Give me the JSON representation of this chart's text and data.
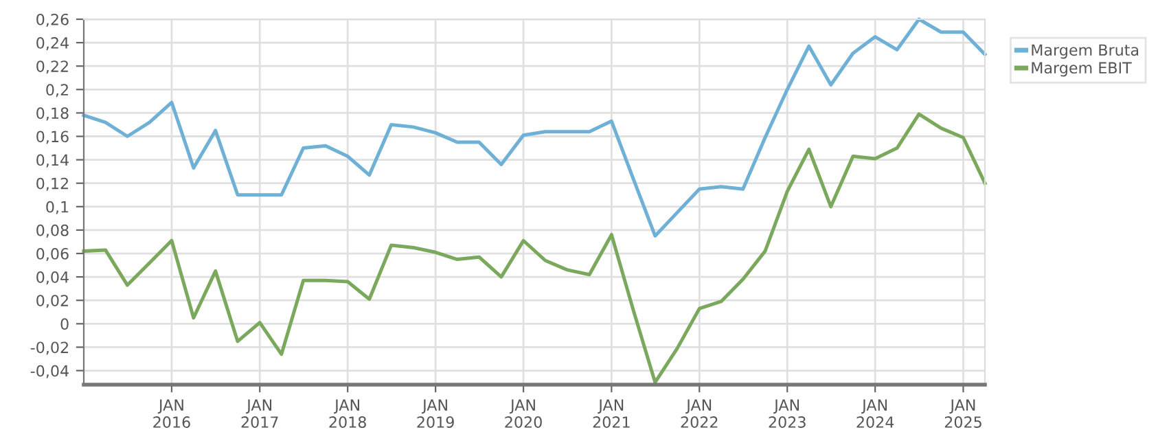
{
  "chart_data": {
    "type": "line",
    "x": [
      "2015-01",
      "2015-04",
      "2015-07",
      "2015-10",
      "2016-01",
      "2016-04",
      "2016-07",
      "2016-10",
      "2017-01",
      "2017-04",
      "2017-07",
      "2017-10",
      "2018-01",
      "2018-04",
      "2018-07",
      "2018-10",
      "2019-01",
      "2019-04",
      "2019-07",
      "2019-10",
      "2020-01",
      "2020-04",
      "2020-07",
      "2020-10",
      "2021-01",
      "2021-04",
      "2021-07",
      "2021-10",
      "2022-01",
      "2022-04",
      "2022-07",
      "2022-10",
      "2023-01",
      "2023-04",
      "2023-07",
      "2023-10",
      "2024-01",
      "2024-04",
      "2024-07",
      "2024-10",
      "2025-01",
      "2025-04"
    ],
    "series": [
      {
        "name": "Margem Bruta",
        "color": "#6fb0d6",
        "values": [
          0.178,
          0.172,
          0.16,
          0.172,
          0.189,
          0.133,
          0.165,
          0.11,
          0.11,
          0.11,
          0.15,
          0.152,
          0.143,
          0.127,
          0.17,
          0.168,
          0.163,
          0.155,
          0.155,
          0.136,
          0.161,
          0.164,
          0.164,
          0.164,
          0.173,
          0.124,
          0.075,
          0.095,
          0.115,
          0.117,
          0.115,
          0.159,
          0.2,
          0.237,
          0.204,
          0.231,
          0.245,
          0.234,
          0.26,
          0.249,
          0.249,
          0.23
        ]
      },
      {
        "name": "Margem EBIT",
        "color": "#7aa85c",
        "values": [
          0.062,
          0.063,
          0.033,
          0.052,
          0.071,
          0.005,
          0.045,
          -0.015,
          0.001,
          -0.026,
          0.037,
          0.037,
          0.036,
          0.021,
          0.067,
          0.065,
          0.061,
          0.055,
          0.057,
          0.04,
          0.071,
          0.054,
          0.046,
          0.042,
          0.076,
          0.012,
          -0.05,
          -0.021,
          0.013,
          0.019,
          0.038,
          0.062,
          0.113,
          0.149,
          0.1,
          0.143,
          0.141,
          0.15,
          0.179,
          0.167,
          0.159,
          0.12
        ]
      }
    ],
    "xlim": [
      "2015-01",
      "2025-04"
    ],
    "xticks": [
      {
        "value": "2016-01",
        "label": "JAN\n2016"
      },
      {
        "value": "2017-01",
        "label": "JAN\n2017"
      },
      {
        "value": "2018-01",
        "label": "JAN\n2018"
      },
      {
        "value": "2019-01",
        "label": "JAN\n2019"
      },
      {
        "value": "2020-01",
        "label": "JAN\n2020"
      },
      {
        "value": "2021-01",
        "label": "JAN\n2021"
      },
      {
        "value": "2022-01",
        "label": "JAN\n2022"
      },
      {
        "value": "2023-01",
        "label": "JAN\n2023"
      },
      {
        "value": "2024-01",
        "label": "JAN\n2024"
      },
      {
        "value": "2025-01",
        "label": "JAN\n2025"
      }
    ],
    "ylim": [
      -0.052,
      0.26
    ],
    "yticks": [
      {
        "value": -0.04,
        "label": "-0,04"
      },
      {
        "value": -0.02,
        "label": "-0,02"
      },
      0,
      {
        "value": 0.02,
        "label": "0,02"
      },
      {
        "value": 0.04,
        "label": "0,04"
      },
      {
        "value": 0.06,
        "label": "0,06"
      },
      {
        "value": 0.08,
        "label": "0,08"
      },
      {
        "value": 0.1,
        "label": "0,1"
      },
      {
        "value": 0.12,
        "label": "0,12"
      },
      {
        "value": 0.14,
        "label": "0,14"
      },
      {
        "value": 0.16,
        "label": "0,16"
      },
      {
        "value": 0.18,
        "label": "0,18"
      },
      {
        "value": 0.2,
        "label": "0,2"
      },
      {
        "value": 0.22,
        "label": "0,22"
      },
      {
        "value": 0.24,
        "label": "0,24"
      },
      {
        "value": 0.26,
        "label": "0,26"
      }
    ],
    "grid": true,
    "legend": "top right",
    "line_style": "solid"
  }
}
